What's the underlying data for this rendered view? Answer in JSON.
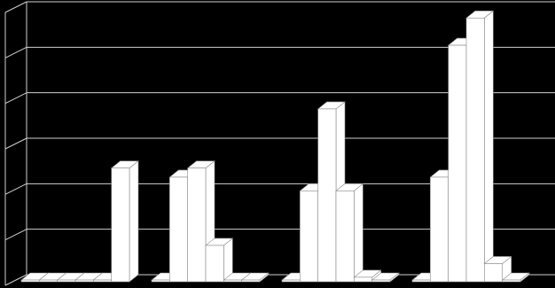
{
  "chart_data": {
    "type": "bar3d",
    "categories": [
      null,
      null,
      null,
      null
    ],
    "series": [
      {
        "color": "#ffffff",
        "values": [
          0,
          0,
          0,
          0
        ]
      },
      {
        "color": "#ffffff",
        "values": [
          0,
          2.3,
          2.0,
          2.3
        ]
      },
      {
        "color": "#ffffff",
        "values": [
          0,
          2.5,
          3.8,
          5.2
        ]
      },
      {
        "color": "#ffffff",
        "values": [
          0,
          0.8,
          2.0,
          5.8
        ]
      },
      {
        "color": "#ffffff",
        "values": [
          0,
          0,
          0.1,
          0.4
        ]
      },
      {
        "color": "#ffffff",
        "values": [
          2.5,
          0,
          0,
          0
        ]
      }
    ],
    "ylim": [
      0,
      6
    ],
    "yticks": [
      0,
      1,
      2,
      3,
      4,
      5,
      6
    ],
    "grid": true
  }
}
